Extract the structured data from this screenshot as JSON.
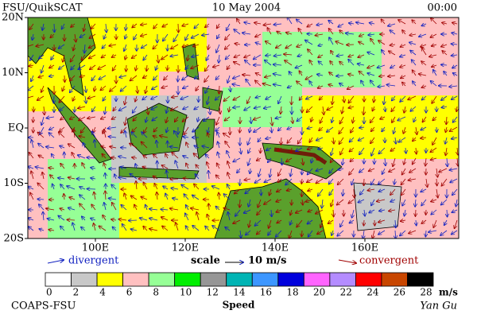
{
  "header": {
    "source": "FSU/QuikSCAT",
    "date": "10 May 2004",
    "time": "00:00"
  },
  "map": {
    "lat_labels": [
      "20N",
      "10N",
      "EQ",
      "10S",
      "20S"
    ],
    "lon_labels": [
      "100E",
      "120E",
      "140E",
      "160E"
    ]
  },
  "legend": {
    "divergent": "divergent",
    "scale": "scale",
    "scale_value": "10 m/s",
    "convergent": "convergent"
  },
  "colorbar": {
    "ticks": [
      0,
      2,
      4,
      6,
      8,
      10,
      12,
      14,
      16,
      18,
      20,
      22,
      24,
      26,
      28
    ],
    "unit": "m/s",
    "label": "Speed",
    "colors": [
      "#ffffff",
      "#c8c8c8",
      "#ffff00",
      "#ffc0c0",
      "#96ff96",
      "#00ee00",
      "#969696",
      "#00b4b4",
      "#3c96ff",
      "#0000dc",
      "#ff64ff",
      "#b48cff",
      "#ff0000",
      "#c84600",
      "#000000"
    ]
  },
  "footer": {
    "institution": "COAPS-FSU",
    "author": "Yan Gu"
  }
}
